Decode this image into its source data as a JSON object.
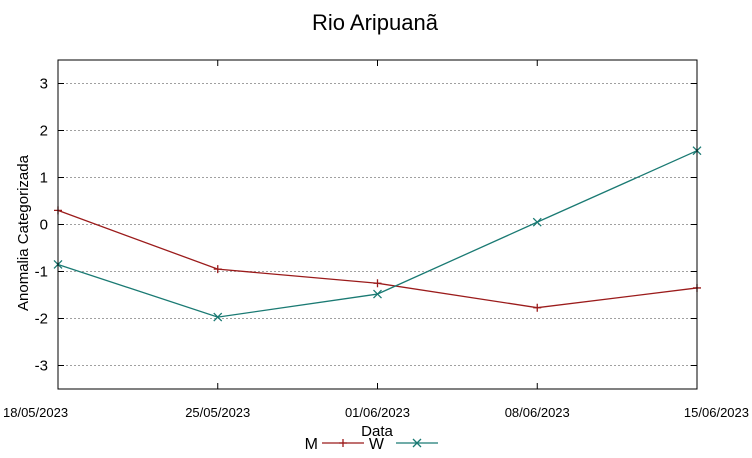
{
  "chart_data": {
    "type": "line",
    "title": "Rio Aripuanã",
    "xlabel": "Data",
    "ylabel": "Anomalia Categorizada",
    "categories": [
      "18/05/2023",
      "25/05/2023",
      "01/06/2023",
      "08/06/2023",
      "15/06/2023"
    ],
    "ylim": [
      -3.5,
      3.5
    ],
    "yticks": [
      3,
      2,
      1,
      0,
      -1,
      -2,
      -3
    ],
    "ytick_labels": [
      "3",
      "2",
      "1",
      "0",
      "-1",
      "-2",
      "-3"
    ],
    "grid": true,
    "legend_placement": "bottom-center",
    "series": [
      {
        "name": "M",
        "values": [
          0.3,
          -0.95,
          -1.25,
          -1.77,
          -1.35
        ],
        "color": "#9b1b1b",
        "marker": "plus"
      },
      {
        "name": "W",
        "values": [
          -0.85,
          -1.97,
          -1.48,
          0.05,
          1.57
        ],
        "color": "#1a7a73",
        "marker": "cross"
      }
    ]
  }
}
